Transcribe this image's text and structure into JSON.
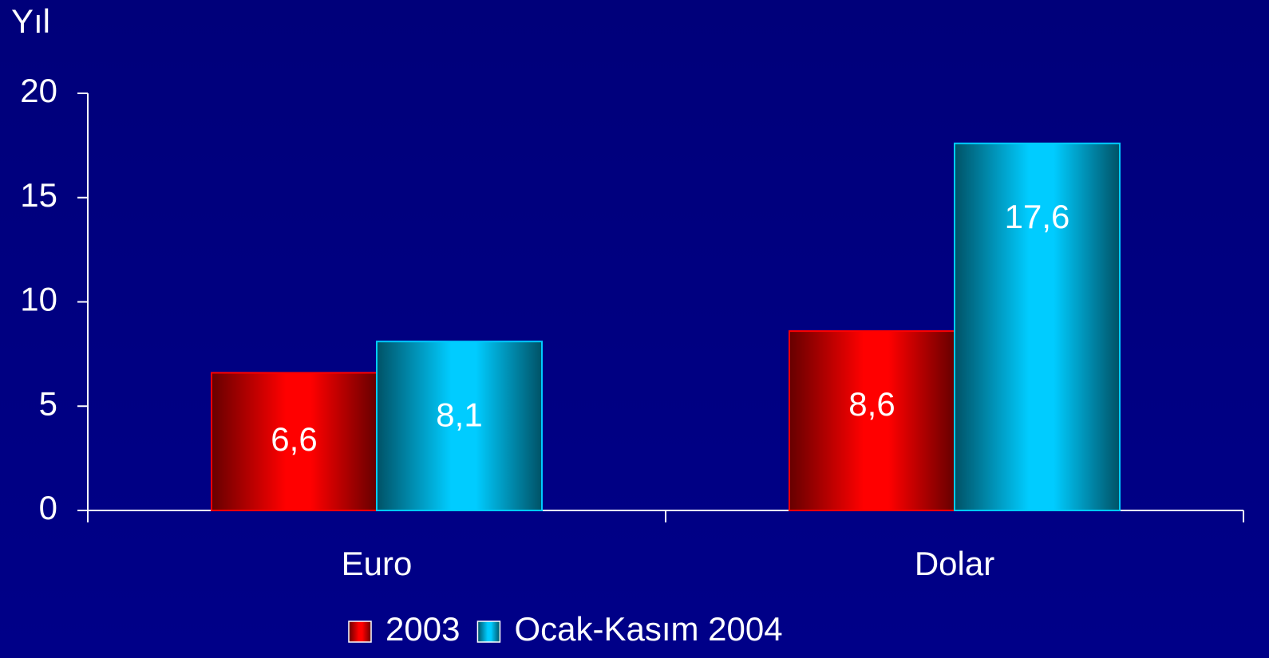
{
  "chart_data": {
    "type": "bar",
    "y_label": "Yıl",
    "categories": [
      "Euro",
      "Dolar"
    ],
    "series": [
      {
        "name": "2003",
        "color": "#ff0000",
        "values": [
          6.6,
          8.6
        ],
        "value_labels": [
          "6,6",
          "8,6"
        ]
      },
      {
        "name": "Ocak-Kasım 2004",
        "color": "#00ccff",
        "values": [
          8.1,
          17.6
        ],
        "value_labels": [
          "8,1",
          "17,6"
        ]
      }
    ],
    "ylim": [
      0,
      20
    ],
    "yticks": [
      0,
      5,
      10,
      15,
      20
    ],
    "legend": "bottom"
  }
}
